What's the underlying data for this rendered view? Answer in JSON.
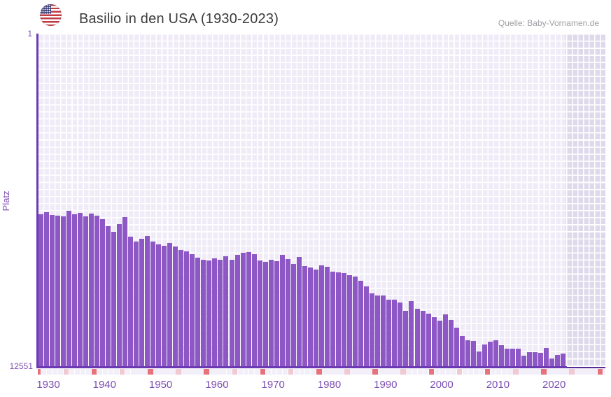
{
  "header": {
    "title": "Basilio in den USA (1930-2023)",
    "source": "Quelle: Baby-Vornamen.de",
    "flag_icon": "us-flag-icon"
  },
  "y_axis": {
    "label": "Platz",
    "top_tick": "1",
    "bottom_tick": "12551"
  },
  "colors": {
    "bar": "#8d58c5",
    "axis": "#6b3ab3",
    "axis_text": "#7b4db2",
    "grid_cell": "#efebf7",
    "future_cell": "#dfdaeb",
    "tick_decade": "#e4737c",
    "tick_half_decade": "#f1c9d3",
    "title_text": "#3b3b3b",
    "source_text": "#a09fa5"
  },
  "chart_data": {
    "type": "bar",
    "title": "Basilio in den USA (1930-2023)",
    "xlabel": "",
    "ylabel": "Platz",
    "ylim": [
      1,
      12551
    ],
    "y_inverted": true,
    "grid": true,
    "legend": "none",
    "x_tick_labels": [
      "1930",
      "1940",
      "1950",
      "1960",
      "1970",
      "1980",
      "1990",
      "2000",
      "2010",
      "2020"
    ],
    "x_range_drawn": [
      1929,
      2031
    ],
    "data_years_range": [
      1930,
      2023
    ],
    "years": [
      1930,
      1931,
      1932,
      1933,
      1934,
      1935,
      1936,
      1937,
      1938,
      1939,
      1940,
      1941,
      1942,
      1943,
      1944,
      1945,
      1946,
      1947,
      1948,
      1949,
      1950,
      1951,
      1952,
      1953,
      1954,
      1955,
      1956,
      1957,
      1958,
      1959,
      1960,
      1961,
      1962,
      1963,
      1964,
      1965,
      1966,
      1967,
      1968,
      1969,
      1970,
      1971,
      1972,
      1973,
      1974,
      1975,
      1976,
      1977,
      1978,
      1979,
      1980,
      1981,
      1982,
      1983,
      1984,
      1985,
      1986,
      1987,
      1988,
      1989,
      1990,
      1991,
      1992,
      1993,
      1994,
      1995,
      1996,
      1997,
      1998,
      1999,
      2000,
      2001,
      2002,
      2003,
      2004,
      2005,
      2006,
      2007,
      2008,
      2009,
      2010,
      2011,
      2012,
      2013,
      2014,
      2015,
      2016,
      2017,
      2018,
      2019,
      2020,
      2021,
      2022,
      2023
    ],
    "values": [
      6820,
      6740,
      6845,
      6870,
      6895,
      6685,
      6820,
      6765,
      6895,
      6790,
      6870,
      7000,
      7265,
      7480,
      7190,
      6925,
      7665,
      7850,
      7740,
      7635,
      7850,
      7955,
      8005,
      7900,
      8030,
      8165,
      8220,
      8325,
      8455,
      8535,
      8560,
      8480,
      8535,
      8400,
      8535,
      8350,
      8270,
      8245,
      8325,
      8560,
      8615,
      8535,
      8590,
      8350,
      8510,
      8695,
      8430,
      8770,
      8825,
      8905,
      8745,
      8800,
      8985,
      9010,
      9035,
      9115,
      9170,
      9325,
      9540,
      9800,
      9880,
      9880,
      10040,
      10040,
      10145,
      10465,
      10090,
      10385,
      10465,
      10570,
      10700,
      10830,
      10595,
      10805,
      11095,
      11415,
      11570,
      11600,
      11995,
      11730,
      11625,
      11570,
      11760,
      11890,
      11890,
      11890,
      12155,
      12020,
      12020,
      12050,
      11865,
      12260,
      12130,
      12075
    ]
  }
}
